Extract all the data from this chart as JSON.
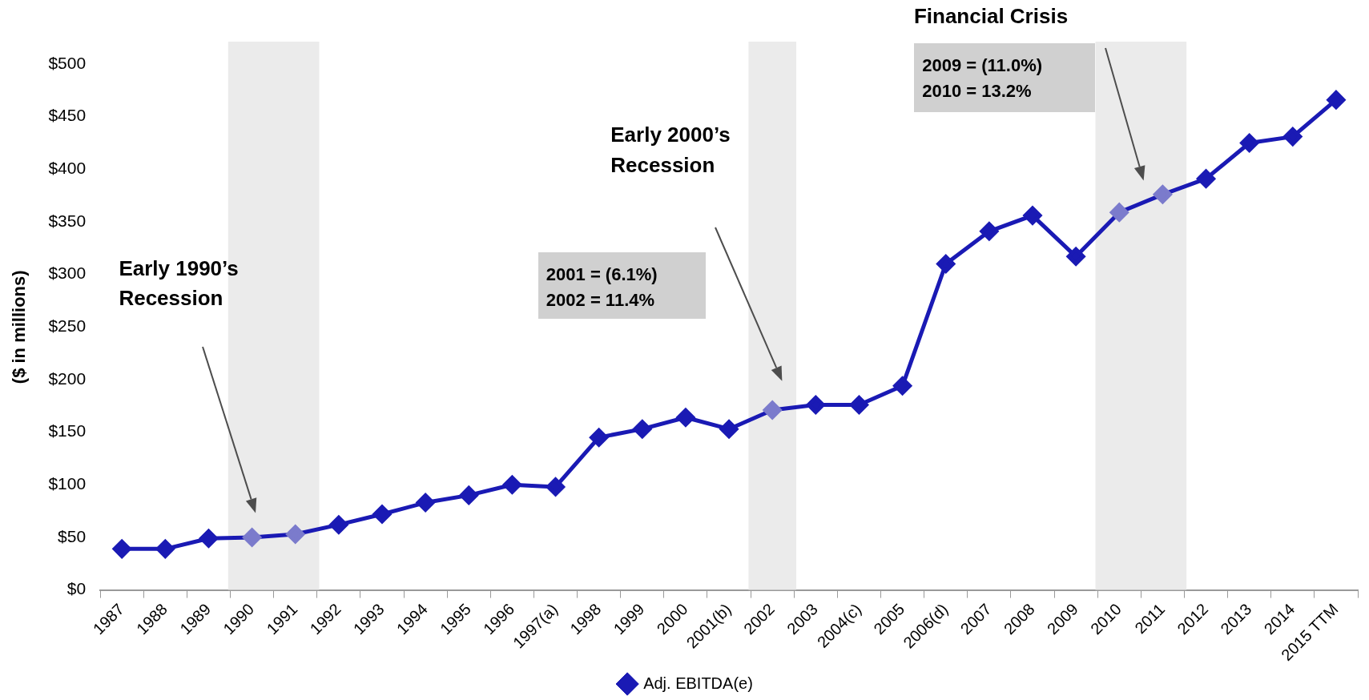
{
  "chart_data": {
    "type": "line",
    "ylabel": "($ in millions)",
    "categories": [
      "1987",
      "1988",
      "1989",
      "1990",
      "1991",
      "1992",
      "1993",
      "1994",
      "1995",
      "1996",
      "1997(a)",
      "1998",
      "1999",
      "2000",
      "2001(b)",
      "2002",
      "2003",
      "2004(c)",
      "2005",
      "2006(d)",
      "2007",
      "2008",
      "2009",
      "2010",
      "2011",
      "2012",
      "2013",
      "2014",
      "2015 TTM"
    ],
    "series": [
      {
        "name": "Adj. EBITDA(e)",
        "color": "#1a1ab4",
        "colors": [
          "#1a1ab4",
          "#1a1ab4",
          "#1a1ab4",
          "#7b7bcc",
          "#7b7bcc",
          "#1a1ab4",
          "#1a1ab4",
          "#1a1ab4",
          "#1a1ab4",
          "#1a1ab4",
          "#1a1ab4",
          "#1a1ab4",
          "#1a1ab4",
          "#1a1ab4",
          "#1a1ab4",
          "#7b7bcc",
          "#1a1ab4",
          "#1a1ab4",
          "#1a1ab4",
          "#1a1ab4",
          "#1a1ab4",
          "#1a1ab4",
          "#1a1ab4",
          "#7b7bcc",
          "#7b7bcc",
          "#1a1ab4",
          "#1a1ab4",
          "#1a1ab4",
          "#1a1ab4"
        ],
        "values": [
          39,
          39,
          49,
          50,
          53,
          62,
          72,
          83,
          90,
          100,
          98,
          145,
          153,
          164,
          153,
          171,
          176,
          176,
          194,
          310,
          341,
          356,
          317,
          359,
          376,
          391,
          425,
          431,
          466
        ]
      }
    ],
    "ylim": [
      0,
      500
    ],
    "yticks": [
      {
        "value": 0,
        "label": "$0"
      },
      {
        "value": 50,
        "label": "$50"
      },
      {
        "value": 100,
        "label": "$100"
      },
      {
        "value": 150,
        "label": "$150"
      },
      {
        "value": 200,
        "label": "$200"
      },
      {
        "value": 250,
        "label": "$250"
      },
      {
        "value": 300,
        "label": "$300"
      },
      {
        "value": 350,
        "label": "$350"
      },
      {
        "value": 400,
        "label": "$400"
      },
      {
        "value": 450,
        "label": "$450"
      },
      {
        "value": 500,
        "label": "$500"
      }
    ],
    "bands": [
      {
        "axis": "x",
        "from": "1990",
        "to": "1991",
        "color": "#ebebeb"
      },
      {
        "axis": "x",
        "from": "2002",
        "to": "2002",
        "color": "#ebebeb"
      },
      {
        "axis": "x",
        "from": "2010",
        "to": "2011",
        "color": "#ebebeb"
      }
    ],
    "annotations": [
      "Early 1990’s\nRecession",
      "2001 = (6.1%)\n2002 = 11.4%",
      "Early 2000’s\nRecession",
      "Financial Crisis",
      "2009 = (11.0%)\n2010 = 13.2%"
    ],
    "grid": false,
    "legend": "bottom",
    "marker": "diamond",
    "line_style": "solid"
  }
}
